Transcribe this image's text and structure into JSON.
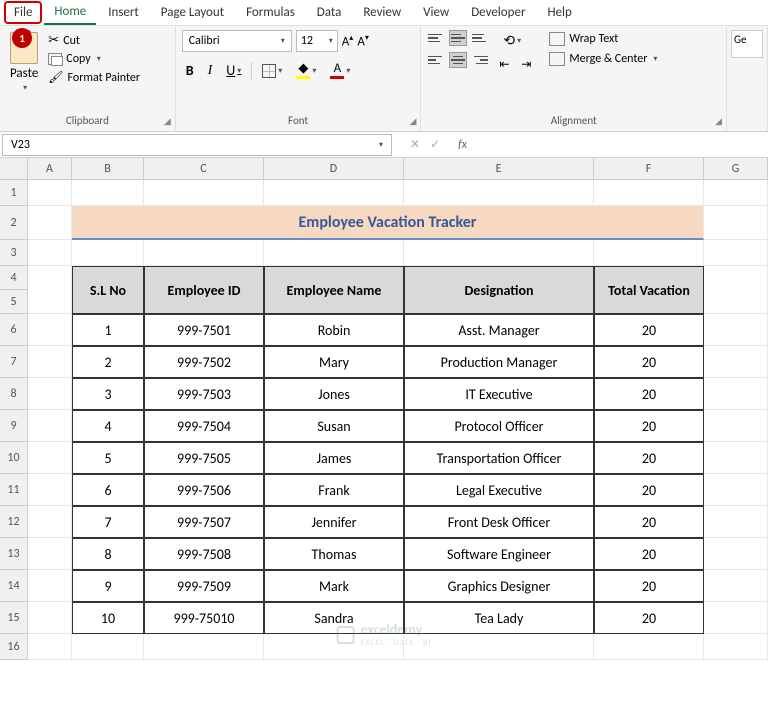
{
  "annotation": {
    "number": "1"
  },
  "tabs": {
    "file": "File",
    "home": "Home",
    "insert": "Insert",
    "page_layout": "Page Layout",
    "formulas": "Formulas",
    "data": "Data",
    "review": "Review",
    "view": "View",
    "developer": "Developer",
    "help": "Help"
  },
  "ribbon": {
    "clipboard": {
      "paste": "Paste",
      "cut": "Cut",
      "copy": "Copy",
      "format_painter": "Format Painter",
      "group_label": "Clipboard"
    },
    "font": {
      "name": "Calibri",
      "size": "12",
      "group_label": "Font",
      "fill_color": "#ffff00",
      "font_color": "#d00000"
    },
    "alignment": {
      "wrap": "Wrap Text",
      "merge": "Merge & Center",
      "group_label": "Alignment"
    },
    "right_label": "Ge"
  },
  "name_box": "V23",
  "fx_label": "fx",
  "sheet": {
    "columns": [
      "A",
      "B",
      "C",
      "D",
      "E",
      "F",
      "G"
    ],
    "title": "Employee Vacation Tracker",
    "title_bg": "#f6d9c0",
    "title_color": "#3a5898",
    "headers": [
      "S.L No",
      "Employee ID",
      "Employee Name",
      "Designation",
      "Total Vacation"
    ],
    "rows": [
      [
        "1",
        "999-7501",
        "Robin",
        "Asst. Manager",
        "20"
      ],
      [
        "2",
        "999-7502",
        "Mary",
        "Production Manager",
        "20"
      ],
      [
        "3",
        "999-7503",
        "Jones",
        "IT Executive",
        "20"
      ],
      [
        "4",
        "999-7504",
        "Susan",
        "Protocol Officer",
        "20"
      ],
      [
        "5",
        "999-7505",
        "James",
        "Transportation Officer",
        "20"
      ],
      [
        "6",
        "999-7506",
        "Frank",
        "Legal Executive",
        "20"
      ],
      [
        "7",
        "999-7507",
        "Jennifer",
        "Front Desk Officer",
        "20"
      ],
      [
        "8",
        "999-7508",
        "Thomas",
        "Software Engineer",
        "20"
      ],
      [
        "9",
        "999-7509",
        "Mark",
        "Graphics Designer",
        "20"
      ],
      [
        "10",
        "999-75010",
        "Sandra",
        "Tea Lady",
        "20"
      ]
    ]
  },
  "watermark": {
    "brand": "exceldemy",
    "sub": "EXCEL · DATA · BI"
  }
}
